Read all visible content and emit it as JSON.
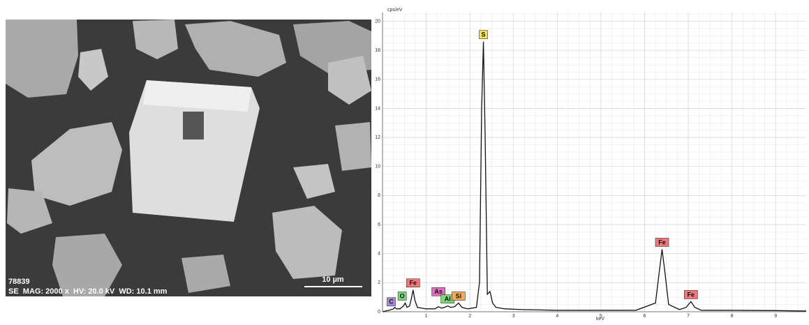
{
  "image": {
    "id_text": "78839",
    "info_text": "SE  MAG: 2000 x  HV: 20.0 kV  WD: 10.1 mm",
    "scale_text": "10 µm"
  },
  "chart_data": {
    "type": "line",
    "y_label": "cps/eV",
    "x_label": "keV",
    "xlim": [
      0,
      9.7
    ],
    "ylim": [
      0,
      20.6
    ],
    "xticks": [
      1,
      2,
      3,
      4,
      5,
      6,
      7,
      8,
      9
    ],
    "yticks": [
      0,
      2,
      4,
      6,
      8,
      10,
      12,
      14,
      16,
      18,
      20
    ],
    "grid": true,
    "series": [
      {
        "color": "#111111",
        "x": [
          0,
          0.15,
          0.25,
          0.28,
          0.32,
          0.4,
          0.48,
          0.52,
          0.56,
          0.62,
          0.66,
          0.7,
          0.74,
          0.8,
          1.0,
          1.2,
          1.28,
          1.35,
          1.42,
          1.49,
          1.56,
          1.65,
          1.74,
          1.82,
          1.95,
          2.15,
          2.22,
          2.27,
          2.31,
          2.35,
          2.4,
          2.46,
          2.52,
          2.6,
          2.8,
          3.2,
          4,
          5,
          5.8,
          6.25,
          6.33,
          6.4,
          6.47,
          6.55,
          6.8,
          6.95,
          7.06,
          7.15,
          7.3,
          8,
          9,
          9.7
        ],
        "values": [
          0,
          0.1,
          0.2,
          0.3,
          0.2,
          0.2,
          0.4,
          0.6,
          0.3,
          0.4,
          0.9,
          1.5,
          0.8,
          0.3,
          0.2,
          0.2,
          0.35,
          0.25,
          0.3,
          0.4,
          0.3,
          0.35,
          0.6,
          0.3,
          0.2,
          0.3,
          2,
          14,
          18.6,
          12,
          1.2,
          1.4,
          0.6,
          0.3,
          0.2,
          0.15,
          0.1,
          0.1,
          0.1,
          0.6,
          2.6,
          4.3,
          2.6,
          0.5,
          0.15,
          0.3,
          0.7,
          0.3,
          0.1,
          0.1,
          0.08,
          0.05
        ]
      }
    ],
    "peak_labels": [
      {
        "label": "C",
        "x": 0.2,
        "y": 0.2,
        "color": "#a98ad8"
      },
      {
        "label": "O",
        "x": 0.45,
        "y": 0.6,
        "color": "#7ad97a"
      },
      {
        "label": "Fe",
        "x": 0.7,
        "y": 1.5,
        "color": "#f07878"
      },
      {
        "label": "As",
        "x": 1.28,
        "y": 0.9,
        "color": "#e46cc0"
      },
      {
        "label": "Al",
        "x": 1.49,
        "y": 0.4,
        "color": "#7ad97a"
      },
      {
        "label": "Si",
        "x": 1.74,
        "y": 0.6,
        "color": "#f3aa5a"
      },
      {
        "label": "S",
        "x": 2.31,
        "y": 18.6,
        "color": "#f2e44a"
      },
      {
        "label": "Fe",
        "x": 6.4,
        "y": 4.3,
        "color": "#f07878"
      },
      {
        "label": "Fe",
        "x": 7.06,
        "y": 0.7,
        "color": "#f07878"
      }
    ]
  }
}
